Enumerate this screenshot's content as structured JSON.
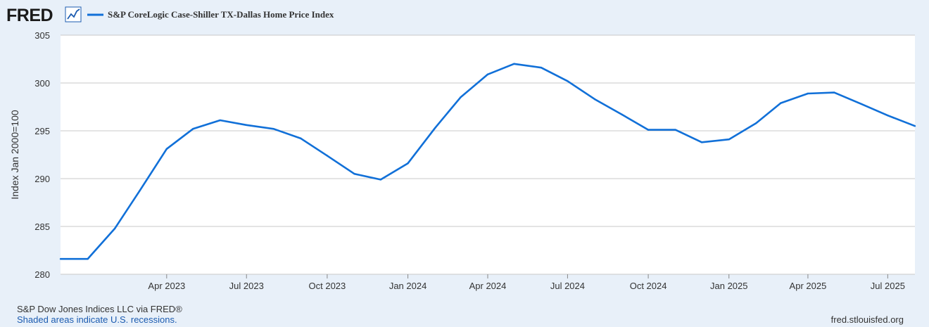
{
  "header": {
    "logo_text": "FRED",
    "logo_icon": "line-chart-icon"
  },
  "chart_data": {
    "type": "line",
    "series": [
      {
        "name": "S&P CoreLogic Case-Shiller TX-Dallas Home Price Index",
        "color": "#1170d8",
        "x": [
          "2022-12-01",
          "2023-01-01",
          "2023-02-01",
          "2023-03-01",
          "2023-04-01",
          "2023-05-01",
          "2023-06-01",
          "2023-07-01",
          "2023-08-01",
          "2023-09-01",
          "2023-10-01",
          "2023-11-01",
          "2023-12-01",
          "2024-01-01",
          "2024-02-01",
          "2024-03-01",
          "2024-04-01",
          "2024-05-01",
          "2024-06-01",
          "2024-07-01",
          "2024-08-01",
          "2024-09-01",
          "2024-10-01",
          "2024-11-01",
          "2024-12-01",
          "2025-01-01",
          "2025-02-01",
          "2025-03-01",
          "2025-04-01",
          "2025-05-01",
          "2025-06-01",
          "2025-07-01",
          "2025-08-01"
        ],
        "values": [
          281.6,
          281.6,
          284.8,
          288.7,
          293.1,
          295.2,
          296.1,
          295.6,
          295.2,
          294.2,
          292.4,
          290.5,
          289.9,
          291.6,
          295.3,
          298.5,
          300.9,
          302.0,
          301.6,
          300.2,
          298.3,
          296.7,
          295.1,
          295.1,
          293.8,
          294.1,
          295.8,
          297.9,
          298.9,
          299.0,
          297.8,
          296.6,
          295.5
        ]
      }
    ],
    "x_ticks": [
      "Apr 2023",
      "Jul 2023",
      "Oct 2023",
      "Jan 2024",
      "Apr 2024",
      "Jul 2024",
      "Oct 2024",
      "Jan 2025",
      "Apr 2025",
      "Jul 2025"
    ],
    "x_tick_dates": [
      "2023-04-01",
      "2023-07-01",
      "2023-10-01",
      "2024-01-01",
      "2024-04-01",
      "2024-07-01",
      "2024-10-01",
      "2025-01-01",
      "2025-04-01",
      "2025-07-01"
    ],
    "y_ticks": [
      280,
      285,
      290,
      295,
      300,
      305
    ],
    "ylim": [
      280,
      305
    ],
    "ylabel": "Index Jan 2000=100",
    "xlabel": "",
    "grid": "horizontal",
    "legend_position": "top-left"
  },
  "footer": {
    "source": "S&P Dow Jones Indices LLC via FRED®",
    "recession_note": "Shaded areas indicate U.S. recessions.",
    "site": "fred.stlouisfed.org"
  },
  "colors": {
    "background": "#e8f0f9",
    "plot_background": "#ffffff",
    "line": "#1170d8",
    "grid": "#c8c8c8",
    "text": "#333333",
    "link": "#1b5bb0"
  }
}
